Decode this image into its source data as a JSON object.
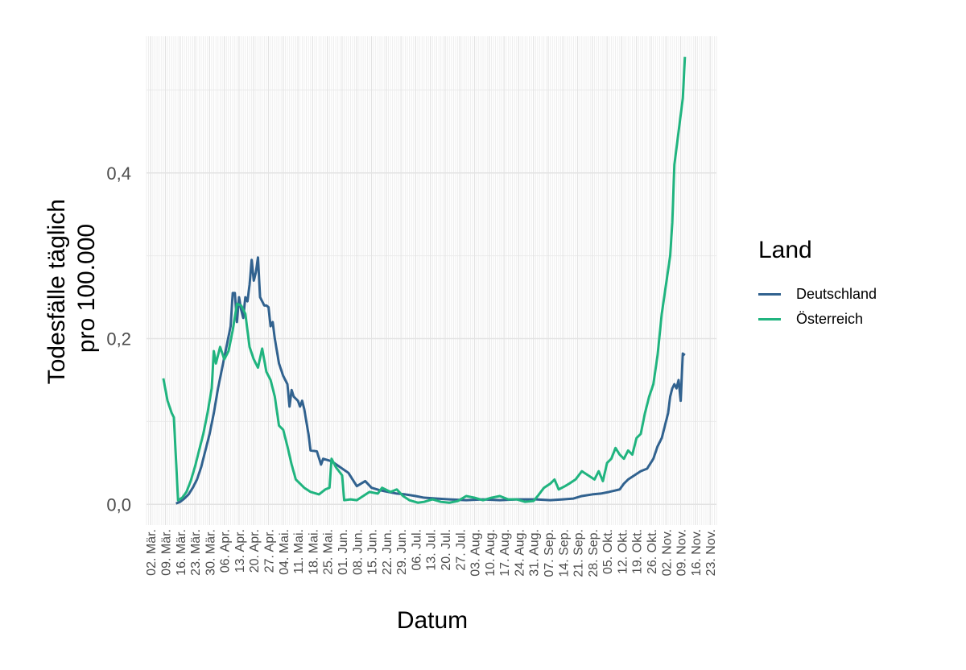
{
  "chart_data": {
    "type": "line",
    "xlabel": "Datum",
    "ylabel_lines": [
      "Todesfälle täglich",
      "pro 100.000"
    ],
    "ylim": [
      -0.025,
      0.565
    ],
    "yticks": [
      0.0,
      0.2,
      0.4
    ],
    "ytick_labels": [
      "0,0",
      "0,2",
      "0,4"
    ],
    "x_start_date": "2020-02-29",
    "x_end_date": "2020-11-26",
    "xtick_dates": [
      "2020-03-02",
      "2020-03-09",
      "2020-03-16",
      "2020-03-23",
      "2020-03-30",
      "2020-04-06",
      "2020-04-13",
      "2020-04-20",
      "2020-04-27",
      "2020-05-04",
      "2020-05-11",
      "2020-05-18",
      "2020-05-25",
      "2020-06-01",
      "2020-06-08",
      "2020-06-15",
      "2020-06-22",
      "2020-06-29",
      "2020-07-06",
      "2020-07-13",
      "2020-07-20",
      "2020-07-27",
      "2020-08-03",
      "2020-08-10",
      "2020-08-17",
      "2020-08-24",
      "2020-08-31",
      "2020-09-07",
      "2020-09-14",
      "2020-09-21",
      "2020-09-28",
      "2020-10-05",
      "2020-10-12",
      "2020-10-19",
      "2020-10-26",
      "2020-11-02",
      "2020-11-09",
      "2020-11-16",
      "2020-11-23"
    ],
    "xtick_labels": [
      "02. Mär.",
      "09. Mär.",
      "16. Mär.",
      "23. Mär.",
      "30. Mär.",
      "06. Apr.",
      "13. Apr.",
      "20. Apr.",
      "27. Apr.",
      "04. Mai.",
      "11. Mai.",
      "18. Mai.",
      "25. Mai.",
      "01. Jun.",
      "08. Jun.",
      "15. Jun.",
      "22. Jun.",
      "29. Jun.",
      "06. Jul.",
      "13. Jul.",
      "20. Jul.",
      "27. Jul.",
      "03. Aug.",
      "10. Aug.",
      "17. Aug.",
      "24. Aug.",
      "31. Aug.",
      "07. Sep.",
      "14. Sep.",
      "21. Sep.",
      "28. Sep.",
      "05. Okt.",
      "12. Okt.",
      "19. Okt.",
      "26. Okt.",
      "02. Nov.",
      "09. Nov.",
      "16. Nov.",
      "23. Nov."
    ],
    "grid": true,
    "legend_title": "Land",
    "legend_position": "right",
    "series": [
      {
        "name": "Deutschland",
        "color": "#31628F",
        "points": [
          [
            "2020-03-14",
            0.001
          ],
          [
            "2020-03-16",
            0.003
          ],
          [
            "2020-03-18",
            0.007
          ],
          [
            "2020-03-20",
            0.012
          ],
          [
            "2020-03-22",
            0.02
          ],
          [
            "2020-03-24",
            0.03
          ],
          [
            "2020-03-26",
            0.045
          ],
          [
            "2020-03-28",
            0.065
          ],
          [
            "2020-03-30",
            0.085
          ],
          [
            "2020-04-01",
            0.11
          ],
          [
            "2020-04-03",
            0.14
          ],
          [
            "2020-04-05",
            0.165
          ],
          [
            "2020-04-07",
            0.19
          ],
          [
            "2020-04-09",
            0.215
          ],
          [
            "2020-04-10",
            0.255
          ],
          [
            "2020-04-11",
            0.255
          ],
          [
            "2020-04-12",
            0.22
          ],
          [
            "2020-04-13",
            0.25
          ],
          [
            "2020-04-14",
            0.235
          ],
          [
            "2020-04-15",
            0.225
          ],
          [
            "2020-04-16",
            0.25
          ],
          [
            "2020-04-17",
            0.245
          ],
          [
            "2020-04-18",
            0.265
          ],
          [
            "2020-04-19",
            0.295
          ],
          [
            "2020-04-20",
            0.27
          ],
          [
            "2020-04-21",
            0.28
          ],
          [
            "2020-04-22",
            0.298
          ],
          [
            "2020-04-23",
            0.25
          ],
          [
            "2020-04-24",
            0.245
          ],
          [
            "2020-04-25",
            0.24
          ],
          [
            "2020-04-26",
            0.24
          ],
          [
            "2020-04-27",
            0.238
          ],
          [
            "2020-04-28",
            0.215
          ],
          [
            "2020-04-29",
            0.22
          ],
          [
            "2020-04-30",
            0.2
          ],
          [
            "2020-05-02",
            0.17
          ],
          [
            "2020-05-04",
            0.155
          ],
          [
            "2020-05-06",
            0.145
          ],
          [
            "2020-05-07",
            0.118
          ],
          [
            "2020-05-08",
            0.138
          ],
          [
            "2020-05-09",
            0.13
          ],
          [
            "2020-05-11",
            0.125
          ],
          [
            "2020-05-12",
            0.118
          ],
          [
            "2020-05-13",
            0.125
          ],
          [
            "2020-05-14",
            0.115
          ],
          [
            "2020-05-16",
            0.085
          ],
          [
            "2020-05-17",
            0.065
          ],
          [
            "2020-05-20",
            0.064
          ],
          [
            "2020-05-22",
            0.048
          ],
          [
            "2020-05-23",
            0.055
          ],
          [
            "2020-05-27",
            0.052
          ],
          [
            "2020-05-31",
            0.045
          ],
          [
            "2020-06-04",
            0.038
          ],
          [
            "2020-06-08",
            0.022
          ],
          [
            "2020-06-12",
            0.028
          ],
          [
            "2020-06-15",
            0.02
          ],
          [
            "2020-06-19",
            0.017
          ],
          [
            "2020-06-23",
            0.015
          ],
          [
            "2020-06-27",
            0.013
          ],
          [
            "2020-07-01",
            0.012
          ],
          [
            "2020-07-06",
            0.01
          ],
          [
            "2020-07-10",
            0.008
          ],
          [
            "2020-07-16",
            0.007
          ],
          [
            "2020-07-22",
            0.006
          ],
          [
            "2020-07-30",
            0.005
          ],
          [
            "2020-08-07",
            0.006
          ],
          [
            "2020-08-15",
            0.005
          ],
          [
            "2020-08-23",
            0.006
          ],
          [
            "2020-09-01",
            0.006
          ],
          [
            "2020-09-08",
            0.005
          ],
          [
            "2020-09-14",
            0.006
          ],
          [
            "2020-09-19",
            0.007
          ],
          [
            "2020-09-23",
            0.01
          ],
          [
            "2020-09-28",
            0.012
          ],
          [
            "2020-10-02",
            0.013
          ],
          [
            "2020-10-06",
            0.015
          ],
          [
            "2020-10-11",
            0.018
          ],
          [
            "2020-10-13",
            0.025
          ],
          [
            "2020-10-15",
            0.03
          ],
          [
            "2020-10-18",
            0.035
          ],
          [
            "2020-10-21",
            0.04
          ],
          [
            "2020-10-24",
            0.043
          ],
          [
            "2020-10-27",
            0.055
          ],
          [
            "2020-10-29",
            0.07
          ],
          [
            "2020-10-31",
            0.08
          ],
          [
            "2020-11-02",
            0.1
          ],
          [
            "2020-11-03",
            0.11
          ],
          [
            "2020-11-04",
            0.13
          ],
          [
            "2020-11-05",
            0.14
          ],
          [
            "2020-11-06",
            0.145
          ],
          [
            "2020-11-07",
            0.14
          ],
          [
            "2020-11-08",
            0.15
          ],
          [
            "2020-11-09",
            0.125
          ],
          [
            "2020-11-10",
            0.182
          ],
          [
            "2020-11-11",
            0.18
          ]
        ]
      },
      {
        "name": "Österreich",
        "color": "#20B47F",
        "points": [
          [
            "2020-03-08",
            0.152
          ],
          [
            "2020-03-10",
            0.125
          ],
          [
            "2020-03-12",
            0.11
          ],
          [
            "2020-03-13",
            0.105
          ],
          [
            "2020-03-14",
            0.055
          ],
          [
            "2020-03-15",
            0.005
          ],
          [
            "2020-03-17",
            0.008
          ],
          [
            "2020-03-19",
            0.015
          ],
          [
            "2020-03-21",
            0.028
          ],
          [
            "2020-03-23",
            0.045
          ],
          [
            "2020-03-25",
            0.065
          ],
          [
            "2020-03-27",
            0.085
          ],
          [
            "2020-03-29",
            0.11
          ],
          [
            "2020-03-31",
            0.14
          ],
          [
            "2020-04-01",
            0.185
          ],
          [
            "2020-04-02",
            0.17
          ],
          [
            "2020-04-04",
            0.19
          ],
          [
            "2020-04-06",
            0.175
          ],
          [
            "2020-04-08",
            0.185
          ],
          [
            "2020-04-10",
            0.21
          ],
          [
            "2020-04-12",
            0.242
          ],
          [
            "2020-04-14",
            0.24
          ],
          [
            "2020-04-16",
            0.23
          ],
          [
            "2020-04-18",
            0.19
          ],
          [
            "2020-04-20",
            0.175
          ],
          [
            "2020-04-22",
            0.165
          ],
          [
            "2020-04-24",
            0.188
          ],
          [
            "2020-04-26",
            0.16
          ],
          [
            "2020-04-28",
            0.15
          ],
          [
            "2020-04-30",
            0.13
          ],
          [
            "2020-05-02",
            0.095
          ],
          [
            "2020-05-04",
            0.09
          ],
          [
            "2020-05-06",
            0.07
          ],
          [
            "2020-05-08",
            0.048
          ],
          [
            "2020-05-10",
            0.03
          ],
          [
            "2020-05-12",
            0.025
          ],
          [
            "2020-05-14",
            0.02
          ],
          [
            "2020-05-17",
            0.015
          ],
          [
            "2020-05-21",
            0.012
          ],
          [
            "2020-05-24",
            0.018
          ],
          [
            "2020-05-26",
            0.02
          ],
          [
            "2020-05-27",
            0.055
          ],
          [
            "2020-05-29",
            0.045
          ],
          [
            "2020-06-01",
            0.035
          ],
          [
            "2020-06-02",
            0.005
          ],
          [
            "2020-06-05",
            0.006
          ],
          [
            "2020-06-08",
            0.005
          ],
          [
            "2020-06-11",
            0.01
          ],
          [
            "2020-06-14",
            0.015
          ],
          [
            "2020-06-18",
            0.013
          ],
          [
            "2020-06-20",
            0.02
          ],
          [
            "2020-06-24",
            0.015
          ],
          [
            "2020-06-27",
            0.018
          ],
          [
            "2020-06-30",
            0.01
          ],
          [
            "2020-07-03",
            0.005
          ],
          [
            "2020-07-07",
            0.002
          ],
          [
            "2020-07-10",
            0.003
          ],
          [
            "2020-07-14",
            0.006
          ],
          [
            "2020-07-18",
            0.003
          ],
          [
            "2020-07-22",
            0.002
          ],
          [
            "2020-07-26",
            0.004
          ],
          [
            "2020-07-30",
            0.01
          ],
          [
            "2020-08-03",
            0.008
          ],
          [
            "2020-08-07",
            0.005
          ],
          [
            "2020-08-11",
            0.008
          ],
          [
            "2020-08-15",
            0.01
          ],
          [
            "2020-08-19",
            0.006
          ],
          [
            "2020-08-23",
            0.006
          ],
          [
            "2020-08-27",
            0.003
          ],
          [
            "2020-08-31",
            0.004
          ],
          [
            "2020-09-02",
            0.01
          ],
          [
            "2020-09-05",
            0.02
          ],
          [
            "2020-09-08",
            0.025
          ],
          [
            "2020-09-10",
            0.03
          ],
          [
            "2020-09-12",
            0.018
          ],
          [
            "2020-09-15",
            0.022
          ],
          [
            "2020-09-17",
            0.025
          ],
          [
            "2020-09-20",
            0.03
          ],
          [
            "2020-09-23",
            0.04
          ],
          [
            "2020-09-26",
            0.035
          ],
          [
            "2020-09-29",
            0.03
          ],
          [
            "2020-10-01",
            0.04
          ],
          [
            "2020-10-03",
            0.028
          ],
          [
            "2020-10-05",
            0.05
          ],
          [
            "2020-10-07",
            0.055
          ],
          [
            "2020-10-09",
            0.068
          ],
          [
            "2020-10-11",
            0.06
          ],
          [
            "2020-10-13",
            0.055
          ],
          [
            "2020-10-15",
            0.065
          ],
          [
            "2020-10-17",
            0.06
          ],
          [
            "2020-10-19",
            0.08
          ],
          [
            "2020-10-21",
            0.085
          ],
          [
            "2020-10-23",
            0.11
          ],
          [
            "2020-10-25",
            0.13
          ],
          [
            "2020-10-27",
            0.145
          ],
          [
            "2020-10-29",
            0.18
          ],
          [
            "2020-10-31",
            0.23
          ],
          [
            "2020-11-02",
            0.265
          ],
          [
            "2020-11-04",
            0.3
          ],
          [
            "2020-11-05",
            0.34
          ],
          [
            "2020-11-06",
            0.41
          ],
          [
            "2020-11-08",
            0.45
          ],
          [
            "2020-11-10",
            0.49
          ],
          [
            "2020-11-11",
            0.54
          ]
        ]
      }
    ]
  }
}
